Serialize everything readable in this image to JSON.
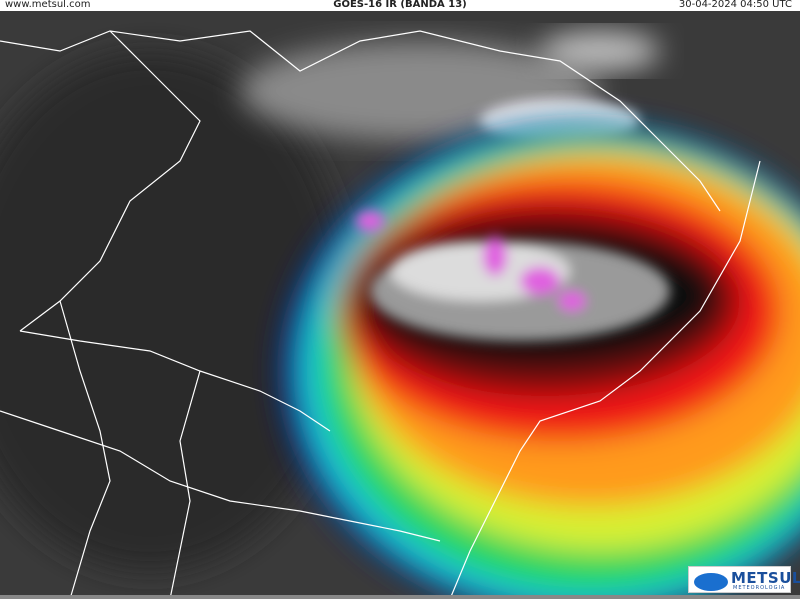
{
  "header": {
    "left": "www.metsul.com",
    "center": "GOES-16 IR (BANDA 13)",
    "right": "30-04-2024 04:50 UTC"
  },
  "logo": {
    "name": "METSUL",
    "tagline": "METEOROLOGIA"
  }
}
